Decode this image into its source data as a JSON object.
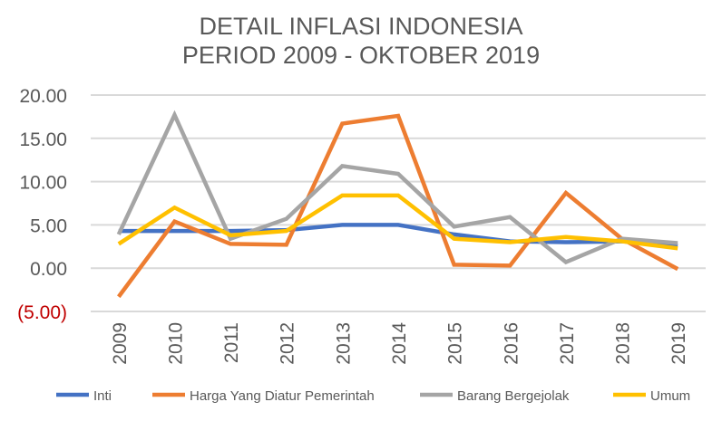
{
  "chart_data": {
    "type": "line",
    "title": [
      "DETAIL INFLASI INDONESIA",
      "PERIOD 2009 - OKTOBER 2019"
    ],
    "xlabel": "",
    "ylabel": "",
    "categories": [
      "2009",
      "2010",
      "2011",
      "2012",
      "2013",
      "2014",
      "2015",
      "2016",
      "2017",
      "2018",
      "2019"
    ],
    "ylim": [
      -5,
      20
    ],
    "yticks": [
      20,
      15,
      10,
      5,
      0,
      -5
    ],
    "ytick_labels": [
      "20.00",
      "15.00",
      "10.00",
      "5.00",
      "0.00",
      "(5.00)"
    ],
    "negative_label_color": "#c00000",
    "grid": true,
    "legend_position": "bottom",
    "series": [
      {
        "name": "Inti",
        "color": "#4472c4",
        "values": [
          4.3,
          4.3,
          4.3,
          4.4,
          5.0,
          5.0,
          3.9,
          3.1,
          3.0,
          3.1,
          2.6
        ]
      },
      {
        "name": "Harga Yang Diatur Pemerintah",
        "color": "#ed7d31",
        "values": [
          -3.3,
          5.4,
          2.8,
          2.7,
          16.7,
          17.6,
          0.4,
          0.3,
          8.7,
          3.4,
          -0.1
        ]
      },
      {
        "name": "Barang Bergejolak",
        "color": "#a5a5a5",
        "values": [
          3.9,
          17.7,
          3.4,
          5.7,
          11.8,
          10.9,
          4.8,
          5.9,
          0.7,
          3.4,
          2.9
        ]
      },
      {
        "name": "Umum",
        "color": "#ffc000",
        "values": [
          2.8,
          7.0,
          3.8,
          4.3,
          8.4,
          8.4,
          3.4,
          3.0,
          3.6,
          3.1,
          2.3
        ]
      }
    ]
  }
}
